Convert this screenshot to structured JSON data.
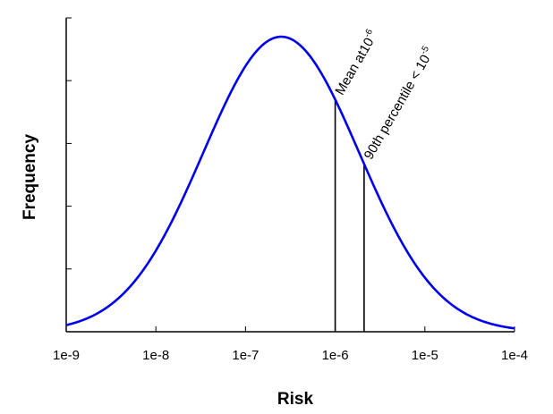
{
  "chart_data": {
    "type": "line",
    "title": "",
    "xlabel": "Risk",
    "ylabel": "Frequency",
    "x_scale": "log",
    "xlim": [
      1e-09,
      0.0001
    ],
    "ylim": [
      0,
      1.0
    ],
    "x_tick_labels": [
      "1e-9",
      "1e-8",
      "1e-7",
      "1e-6",
      "1e-5",
      "1e-4"
    ],
    "x_tick_values": [
      1e-09,
      1e-08,
      1e-07,
      1e-06,
      1e-05,
      0.0001
    ],
    "y_tick_values": [
      0,
      0.2,
      0.4,
      0.6,
      0.8,
      1.0
    ],
    "y_tick_labels_shown": false,
    "grid": false,
    "series": [
      {
        "color": "#0000ee",
        "shape": "lognormal",
        "peak_x": 2.5e-07,
        "peak_y": 0.94,
        "log10_sigma": 0.87
      }
    ],
    "annotations": [
      {
        "x": 1e-06,
        "base": "Mean at10",
        "exponent": "-6"
      },
      {
        "x": 2.1e-06,
        "base": "90th percentile < 10",
        "exponent": "-5"
      }
    ]
  }
}
